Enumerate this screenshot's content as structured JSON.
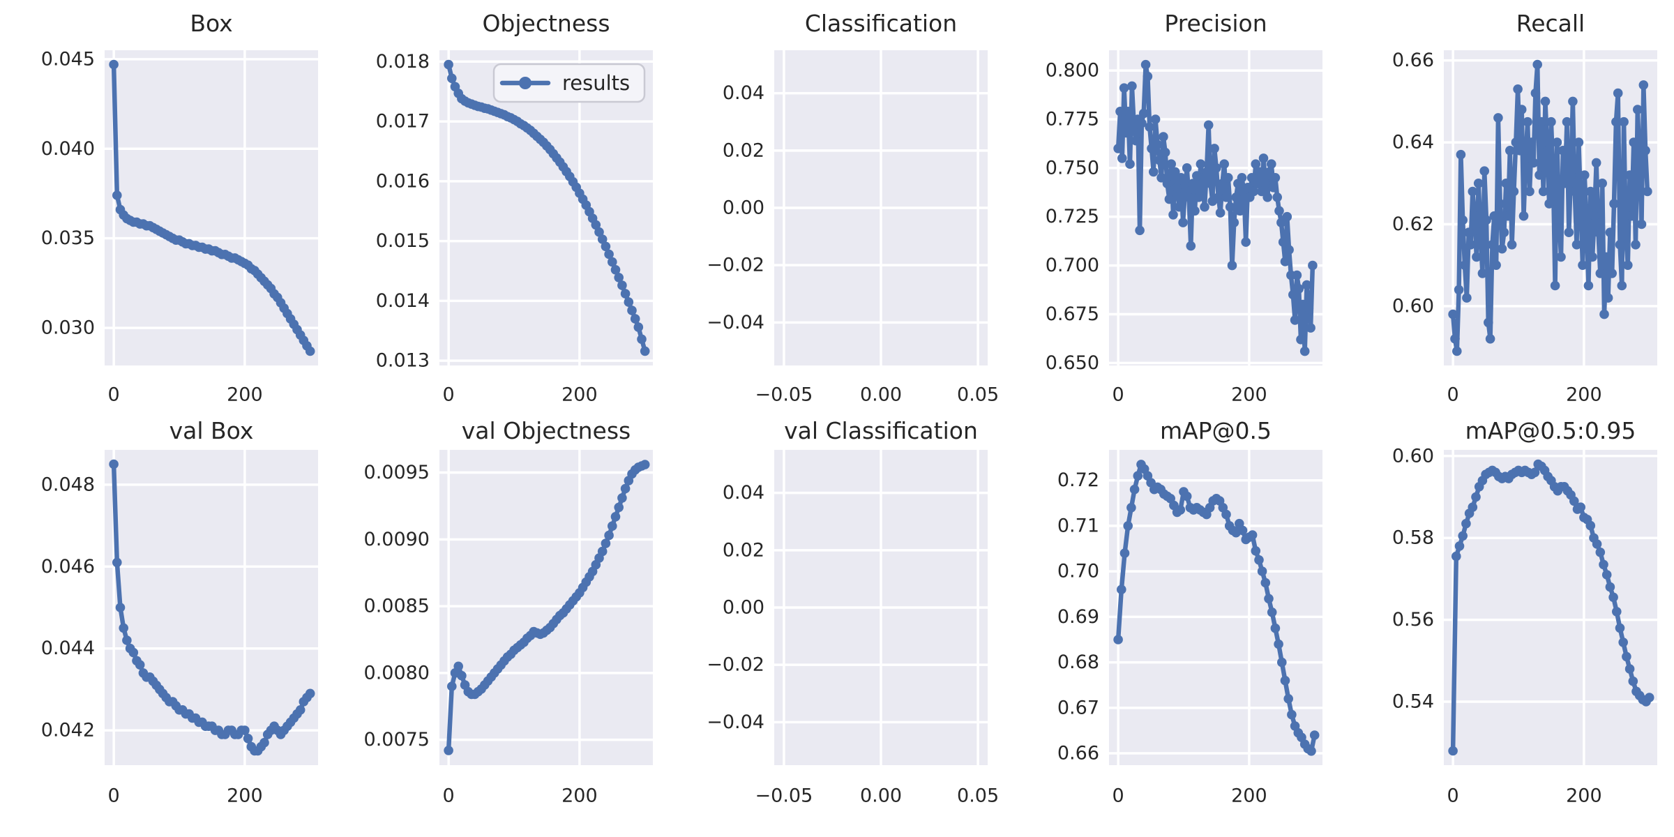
{
  "figure_title": "training results grid",
  "style": {
    "figure_background": "#ffffff",
    "axes_background": "#eaeaf2",
    "grid_color": "#ffffff",
    "series_color": "#4c72b0",
    "text_color": "#262626",
    "legend_background": "#f4f4f9",
    "legend_border": "#c9c9d3"
  },
  "legend": {
    "label": "results"
  },
  "chart_data": [
    {
      "type": "line",
      "title": "Box",
      "xlim": [
        -14,
        312
      ],
      "ylim": [
        0.0279,
        0.0455
      ],
      "xticks": [
        {
          "v": 0,
          "label": "0"
        },
        {
          "v": 200,
          "label": "200"
        }
      ],
      "yticks": [
        {
          "v": 0.03,
          "label": "0.030"
        },
        {
          "v": 0.035,
          "label": "0.035"
        },
        {
          "v": 0.04,
          "label": "0.040"
        },
        {
          "v": 0.045,
          "label": "0.045"
        }
      ],
      "series": {
        "name": "results",
        "x_start": 0,
        "x_step": 5,
        "y": [
          0.0447,
          0.0374,
          0.0366,
          0.0363,
          0.0361,
          0.036,
          0.0359,
          0.0359,
          0.0358,
          0.0358,
          0.0357,
          0.0357,
          0.0356,
          0.0355,
          0.0354,
          0.0353,
          0.0352,
          0.0351,
          0.035,
          0.0349,
          0.0349,
          0.0348,
          0.0347,
          0.0347,
          0.0346,
          0.0346,
          0.0345,
          0.0345,
          0.0344,
          0.0344,
          0.0343,
          0.0343,
          0.0342,
          0.0341,
          0.0341,
          0.034,
          0.0339,
          0.0339,
          0.0338,
          0.0337,
          0.0336,
          0.0335,
          0.0333,
          0.0332,
          0.033,
          0.0328,
          0.0326,
          0.0324,
          0.0322,
          0.0319,
          0.0317,
          0.0314,
          0.0311,
          0.0308,
          0.0305,
          0.0302,
          0.0299,
          0.0296,
          0.0293,
          0.029,
          0.0287
        ]
      }
    },
    {
      "type": "line",
      "title": "Objectness",
      "legend": true,
      "xlim": [
        -14,
        312
      ],
      "ylim": [
        0.01292,
        0.01819
      ],
      "xticks": [
        {
          "v": 0,
          "label": "0"
        },
        {
          "v": 200,
          "label": "200"
        }
      ],
      "yticks": [
        {
          "v": 0.013,
          "label": "0.013"
        },
        {
          "v": 0.014,
          "label": "0.014"
        },
        {
          "v": 0.015,
          "label": "0.015"
        },
        {
          "v": 0.016,
          "label": "0.016"
        },
        {
          "v": 0.017,
          "label": "0.017"
        },
        {
          "v": 0.018,
          "label": "0.018"
        }
      ],
      "series": {
        "name": "results",
        "x_start": 0,
        "x_step": 5,
        "y": [
          0.01795,
          0.01772,
          0.01758,
          0.01747,
          0.01738,
          0.01734,
          0.01731,
          0.01729,
          0.01727,
          0.01725,
          0.01724,
          0.01722,
          0.01721,
          0.01719,
          0.01717,
          0.01715,
          0.01713,
          0.01711,
          0.01708,
          0.01706,
          0.01703,
          0.017,
          0.01696,
          0.01693,
          0.01689,
          0.01685,
          0.0168,
          0.01675,
          0.0167,
          0.01665,
          0.01659,
          0.01653,
          0.01646,
          0.01639,
          0.01632,
          0.01624,
          0.01616,
          0.01608,
          0.01599,
          0.0159,
          0.0158,
          0.0157,
          0.0156,
          0.01549,
          0.01538,
          0.01527,
          0.01515,
          0.01503,
          0.01491,
          0.01478,
          0.01465,
          0.01452,
          0.01439,
          0.01426,
          0.01412,
          0.01398,
          0.01384,
          0.0137,
          0.01356,
          0.01336,
          0.01316
        ]
      }
    },
    {
      "type": "line",
      "title": "Classification",
      "xlim": [
        -0.055,
        0.055
      ],
      "ylim": [
        -0.055,
        0.055
      ],
      "xticks": [
        {
          "v": -0.05,
          "label": "−0.05"
        },
        {
          "v": 0,
          "label": "0.00"
        },
        {
          "v": 0.05,
          "label": "0.05"
        }
      ],
      "yticks": [
        {
          "v": -0.04,
          "label": "−0.04"
        },
        {
          "v": -0.02,
          "label": "−0.02"
        },
        {
          "v": 0,
          "label": "0.00"
        },
        {
          "v": 0.02,
          "label": "0.02"
        },
        {
          "v": 0.04,
          "label": "0.04"
        }
      ],
      "series": null
    },
    {
      "type": "line",
      "title": "Precision",
      "xlim": [
        -14,
        312
      ],
      "ylim": [
        0.6487,
        0.8104
      ],
      "xticks": [
        {
          "v": 0,
          "label": "0"
        },
        {
          "v": 200,
          "label": "200"
        }
      ],
      "yticks": [
        {
          "v": 0.65,
          "label": "0.650"
        },
        {
          "v": 0.675,
          "label": "0.675"
        },
        {
          "v": 0.7,
          "label": "0.700"
        },
        {
          "v": 0.725,
          "label": "0.725"
        },
        {
          "v": 0.75,
          "label": "0.750"
        },
        {
          "v": 0.775,
          "label": "0.775"
        },
        {
          "v": 0.8,
          "label": "0.800"
        }
      ],
      "series": {
        "name": "results",
        "x_start": 0,
        "x_step": 3,
        "y": [
          0.76,
          0.779,
          0.755,
          0.791,
          0.768,
          0.779,
          0.752,
          0.792,
          0.772,
          0.764,
          0.775,
          0.718,
          0.773,
          0.778,
          0.803,
          0.797,
          0.771,
          0.76,
          0.748,
          0.775,
          0.762,
          0.754,
          0.745,
          0.766,
          0.758,
          0.742,
          0.734,
          0.752,
          0.726,
          0.748,
          0.74,
          0.73,
          0.745,
          0.722,
          0.738,
          0.75,
          0.735,
          0.71,
          0.742,
          0.728,
          0.746,
          0.735,
          0.752,
          0.742,
          0.73,
          0.748,
          0.772,
          0.742,
          0.733,
          0.76,
          0.75,
          0.735,
          0.727,
          0.742,
          0.752,
          0.735,
          0.745,
          0.73,
          0.7,
          0.722,
          0.735,
          0.742,
          0.728,
          0.745,
          0.738,
          0.712,
          0.74,
          0.735,
          0.745,
          0.738,
          0.752,
          0.742,
          0.748,
          0.738,
          0.755,
          0.742,
          0.735,
          0.748,
          0.752,
          0.74,
          0.745,
          0.735,
          0.728,
          0.722,
          0.712,
          0.702,
          0.725,
          0.708,
          0.695,
          0.685,
          0.672,
          0.695,
          0.688,
          0.662,
          0.68,
          0.656,
          0.69,
          0.678,
          0.668,
          0.7
        ]
      }
    },
    {
      "type": "line",
      "title": "Recall",
      "xlim": [
        -14,
        312
      ],
      "ylim": [
        0.5855,
        0.6625
      ],
      "xticks": [
        {
          "v": 0,
          "label": "0"
        },
        {
          "v": 200,
          "label": "200"
        }
      ],
      "yticks": [
        {
          "v": 0.6,
          "label": "0.60"
        },
        {
          "v": 0.62,
          "label": "0.62"
        },
        {
          "v": 0.64,
          "label": "0.64"
        },
        {
          "v": 0.66,
          "label": "0.66"
        }
      ],
      "series": {
        "name": "results",
        "x_start": 0,
        "x_step": 3,
        "y": [
          0.598,
          0.592,
          0.589,
          0.604,
          0.637,
          0.621,
          0.61,
          0.602,
          0.618,
          0.615,
          0.628,
          0.622,
          0.612,
          0.63,
          0.618,
          0.608,
          0.633,
          0.621,
          0.596,
          0.592,
          0.615,
          0.622,
          0.61,
          0.646,
          0.625,
          0.614,
          0.618,
          0.63,
          0.622,
          0.638,
          0.615,
          0.628,
          0.64,
          0.653,
          0.638,
          0.648,
          0.622,
          0.636,
          0.645,
          0.628,
          0.64,
          0.635,
          0.652,
          0.659,
          0.632,
          0.645,
          0.628,
          0.65,
          0.638,
          0.625,
          0.645,
          0.632,
          0.605,
          0.64,
          0.622,
          0.612,
          0.638,
          0.63,
          0.645,
          0.618,
          0.632,
          0.65,
          0.628,
          0.615,
          0.64,
          0.625,
          0.61,
          0.632,
          0.62,
          0.605,
          0.628,
          0.612,
          0.622,
          0.635,
          0.618,
          0.608,
          0.63,
          0.598,
          0.612,
          0.602,
          0.618,
          0.608,
          0.625,
          0.645,
          0.652,
          0.615,
          0.605,
          0.645,
          0.618,
          0.61,
          0.632,
          0.622,
          0.64,
          0.615,
          0.648,
          0.635,
          0.62,
          0.654,
          0.638,
          0.628
        ]
      }
    },
    {
      "type": "line",
      "title": "val Box",
      "xlim": [
        -14,
        312
      ],
      "ylim": [
        0.04115,
        0.04885
      ],
      "xticks": [
        {
          "v": 0,
          "label": "0"
        },
        {
          "v": 200,
          "label": "200"
        }
      ],
      "yticks": [
        {
          "v": 0.042,
          "label": "0.042"
        },
        {
          "v": 0.044,
          "label": "0.044"
        },
        {
          "v": 0.046,
          "label": "0.046"
        },
        {
          "v": 0.048,
          "label": "0.048"
        }
      ],
      "series": {
        "name": "results",
        "x_start": 0,
        "x_step": 5,
        "y": [
          0.0485,
          0.0461,
          0.045,
          0.0445,
          0.0442,
          0.044,
          0.0439,
          0.0437,
          0.0436,
          0.0434,
          0.0433,
          0.0433,
          0.0432,
          0.0431,
          0.043,
          0.0429,
          0.0428,
          0.0427,
          0.0427,
          0.0426,
          0.0425,
          0.0425,
          0.0424,
          0.0424,
          0.0423,
          0.0423,
          0.0422,
          0.0422,
          0.0421,
          0.0421,
          0.0421,
          0.042,
          0.042,
          0.0419,
          0.0419,
          0.042,
          0.042,
          0.0419,
          0.0419,
          0.042,
          0.042,
          0.0418,
          0.0416,
          0.0415,
          0.0415,
          0.0416,
          0.0417,
          0.0419,
          0.042,
          0.0421,
          0.042,
          0.0419,
          0.042,
          0.0421,
          0.0422,
          0.0423,
          0.0424,
          0.0425,
          0.0427,
          0.0428,
          0.0429
        ]
      }
    },
    {
      "type": "line",
      "title": "val Objectness",
      "xlim": [
        -14,
        312
      ],
      "ylim": [
        0.00731,
        0.00967
      ],
      "xticks": [
        {
          "v": 0,
          "label": "0"
        },
        {
          "v": 200,
          "label": "200"
        }
      ],
      "yticks": [
        {
          "v": 0.0075,
          "label": "0.0075"
        },
        {
          "v": 0.008,
          "label": "0.0080"
        },
        {
          "v": 0.0085,
          "label": "0.0085"
        },
        {
          "v": 0.009,
          "label": "0.0090"
        },
        {
          "v": 0.0095,
          "label": "0.0095"
        }
      ],
      "series": {
        "name": "results",
        "x_start": 0,
        "x_step": 5,
        "y": [
          0.00742,
          0.0079,
          0.008,
          0.00805,
          0.00798,
          0.00791,
          0.00786,
          0.00784,
          0.00784,
          0.00786,
          0.00788,
          0.00791,
          0.00794,
          0.00797,
          0.008,
          0.00803,
          0.00806,
          0.00809,
          0.00812,
          0.00814,
          0.00817,
          0.00819,
          0.00821,
          0.00823,
          0.00826,
          0.00828,
          0.00831,
          0.0083,
          0.00829,
          0.0083,
          0.00832,
          0.00834,
          0.00837,
          0.0084,
          0.00843,
          0.00845,
          0.00848,
          0.00851,
          0.00854,
          0.00857,
          0.0086,
          0.00864,
          0.00868,
          0.00872,
          0.00876,
          0.00881,
          0.00886,
          0.00891,
          0.00897,
          0.00903,
          0.0091,
          0.00917,
          0.00924,
          0.00931,
          0.00938,
          0.00944,
          0.00949,
          0.00952,
          0.00954,
          0.00955,
          0.00956
        ]
      }
    },
    {
      "type": "line",
      "title": "val Classification",
      "xlim": [
        -0.055,
        0.055
      ],
      "ylim": [
        -0.055,
        0.055
      ],
      "xticks": [
        {
          "v": -0.05,
          "label": "−0.05"
        },
        {
          "v": 0,
          "label": "0.00"
        },
        {
          "v": 0.05,
          "label": "0.05"
        }
      ],
      "yticks": [
        {
          "v": -0.04,
          "label": "−0.04"
        },
        {
          "v": -0.02,
          "label": "−0.02"
        },
        {
          "v": 0,
          "label": "0.00"
        },
        {
          "v": 0.02,
          "label": "0.02"
        },
        {
          "v": 0.04,
          "label": "0.04"
        }
      ],
      "series": null
    },
    {
      "type": "line",
      "title": "mAP@0.5",
      "xlim": [
        -14,
        312
      ],
      "ylim": [
        0.6574,
        0.7267
      ],
      "xticks": [
        {
          "v": 0,
          "label": "0"
        },
        {
          "v": 200,
          "label": "200"
        }
      ],
      "yticks": [
        {
          "v": 0.66,
          "label": "0.66"
        },
        {
          "v": 0.67,
          "label": "0.67"
        },
        {
          "v": 0.68,
          "label": "0.68"
        },
        {
          "v": 0.69,
          "label": "0.69"
        },
        {
          "v": 0.7,
          "label": "0.70"
        },
        {
          "v": 0.71,
          "label": "0.71"
        },
        {
          "v": 0.72,
          "label": "0.72"
        }
      ],
      "series": {
        "name": "results",
        "x_start": 0,
        "x_step": 5,
        "y": [
          0.685,
          0.696,
          0.704,
          0.71,
          0.714,
          0.718,
          0.721,
          0.7235,
          0.7225,
          0.721,
          0.7195,
          0.718,
          0.7185,
          0.718,
          0.717,
          0.7165,
          0.716,
          0.7145,
          0.713,
          0.7135,
          0.7175,
          0.7165,
          0.714,
          0.7135,
          0.714,
          0.7135,
          0.713,
          0.7125,
          0.714,
          0.7155,
          0.716,
          0.7155,
          0.714,
          0.7125,
          0.71,
          0.709,
          0.7085,
          0.7105,
          0.709,
          0.707,
          0.7075,
          0.708,
          0.7045,
          0.7025,
          0.7,
          0.6975,
          0.694,
          0.691,
          0.6875,
          0.684,
          0.68,
          0.676,
          0.672,
          0.6685,
          0.666,
          0.6645,
          0.6635,
          0.662,
          0.661,
          0.6605,
          0.664
        ]
      }
    },
    {
      "type": "line",
      "title": "mAP@0.5:0.95",
      "xlim": [
        -14,
        312
      ],
      "ylim": [
        0.5245,
        0.6015
      ],
      "xticks": [
        {
          "v": 0,
          "label": "0"
        },
        {
          "v": 200,
          "label": "200"
        }
      ],
      "yticks": [
        {
          "v": 0.54,
          "label": "0.54"
        },
        {
          "v": 0.56,
          "label": "0.56"
        },
        {
          "v": 0.58,
          "label": "0.58"
        },
        {
          "v": 0.6,
          "label": "0.60"
        }
      ],
      "series": {
        "name": "results",
        "x_start": 0,
        "x_step": 5,
        "y": [
          0.528,
          0.5755,
          0.578,
          0.5805,
          0.5835,
          0.586,
          0.5875,
          0.59,
          0.5925,
          0.594,
          0.5955,
          0.596,
          0.5965,
          0.596,
          0.595,
          0.5945,
          0.595,
          0.5945,
          0.5955,
          0.596,
          0.5965,
          0.596,
          0.5965,
          0.596,
          0.5955,
          0.596,
          0.598,
          0.5975,
          0.5965,
          0.595,
          0.594,
          0.5925,
          0.5915,
          0.5925,
          0.5925,
          0.5915,
          0.5905,
          0.589,
          0.587,
          0.5875,
          0.585,
          0.5845,
          0.583,
          0.58,
          0.5785,
          0.5765,
          0.5735,
          0.571,
          0.568,
          0.5655,
          0.562,
          0.558,
          0.5545,
          0.551,
          0.548,
          0.545,
          0.5425,
          0.5415,
          0.5405,
          0.54,
          0.541
        ]
      }
    }
  ]
}
